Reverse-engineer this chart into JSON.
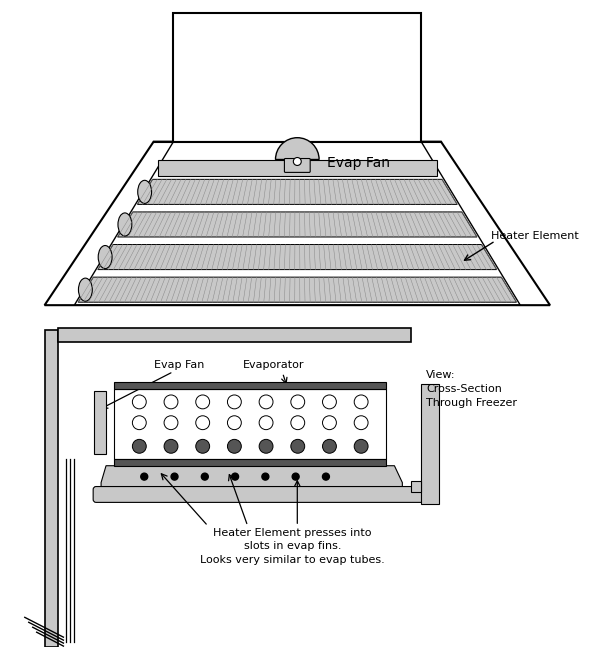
{
  "bg_color": "#ffffff",
  "line_color": "#000000",
  "gray_color": "#aaaaaa",
  "light_gray": "#c8c8c8",
  "dark_gray": "#555555",
  "mid_gray": "#888888",
  "title_top": "Evap Fan",
  "label_heater": "Heater Element",
  "label_evap_fan": "Evap Fan",
  "label_evaporator": "Evaporator",
  "label_view": "View:\nCross-Section\nThrough Freezer",
  "label_bottom": "Heater Element presses into\nslots in evap fins.\nLooks very similar to evap tubes.",
  "font_size": 8
}
